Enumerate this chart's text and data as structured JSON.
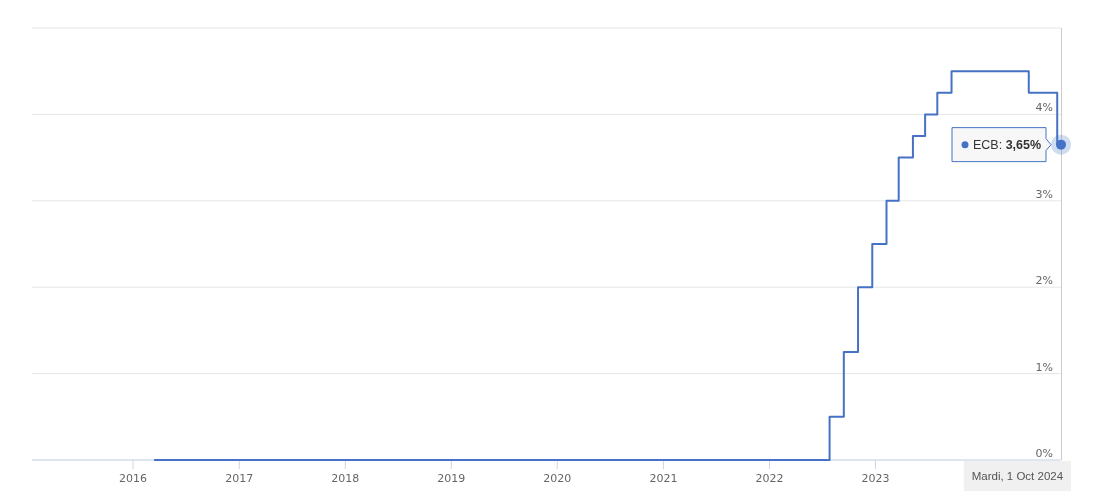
{
  "chart_data": {
    "type": "step",
    "x": [
      "2016-03-16",
      "2022-07-27",
      "2022-09-14",
      "2022-11-02",
      "2022-12-21",
      "2023-02-08",
      "2023-03-22",
      "2023-05-10",
      "2023-06-21",
      "2023-08-02",
      "2023-09-20",
      "2024-06-12",
      "2024-09-18",
      "2024-10-01"
    ],
    "series": [
      {
        "name": "ECB:",
        "color": "#4572c4",
        "values": [
          0,
          0.5,
          1.25,
          2,
          2.5,
          3,
          3.5,
          3.75,
          4,
          4.25,
          4.5,
          4.25,
          3.65,
          3.65
        ],
        "value_labels": [
          null,
          null,
          null,
          null,
          null,
          null,
          null,
          null,
          null,
          null,
          null,
          null,
          null,
          "3,65%"
        ]
      }
    ],
    "xlim": [
      "2015-01-18",
      "2024-10-01"
    ],
    "xticks": [
      "2016",
      "2017",
      "2018",
      "2019",
      "2020",
      "2021",
      "2022",
      "2023"
    ],
    "ylim": [
      0,
      5
    ],
    "yticks": [
      {
        "value": 0,
        "label": "0%"
      },
      {
        "value": 1,
        "label": "1%"
      },
      {
        "value": 2,
        "label": "2%"
      },
      {
        "value": 3,
        "label": "3%"
      },
      {
        "value": 4,
        "label": "4%"
      },
      {
        "value": 5,
        "label": null
      }
    ],
    "grid": "y",
    "annotations": [
      "Mardi, 1 Oct 2024"
    ]
  }
}
